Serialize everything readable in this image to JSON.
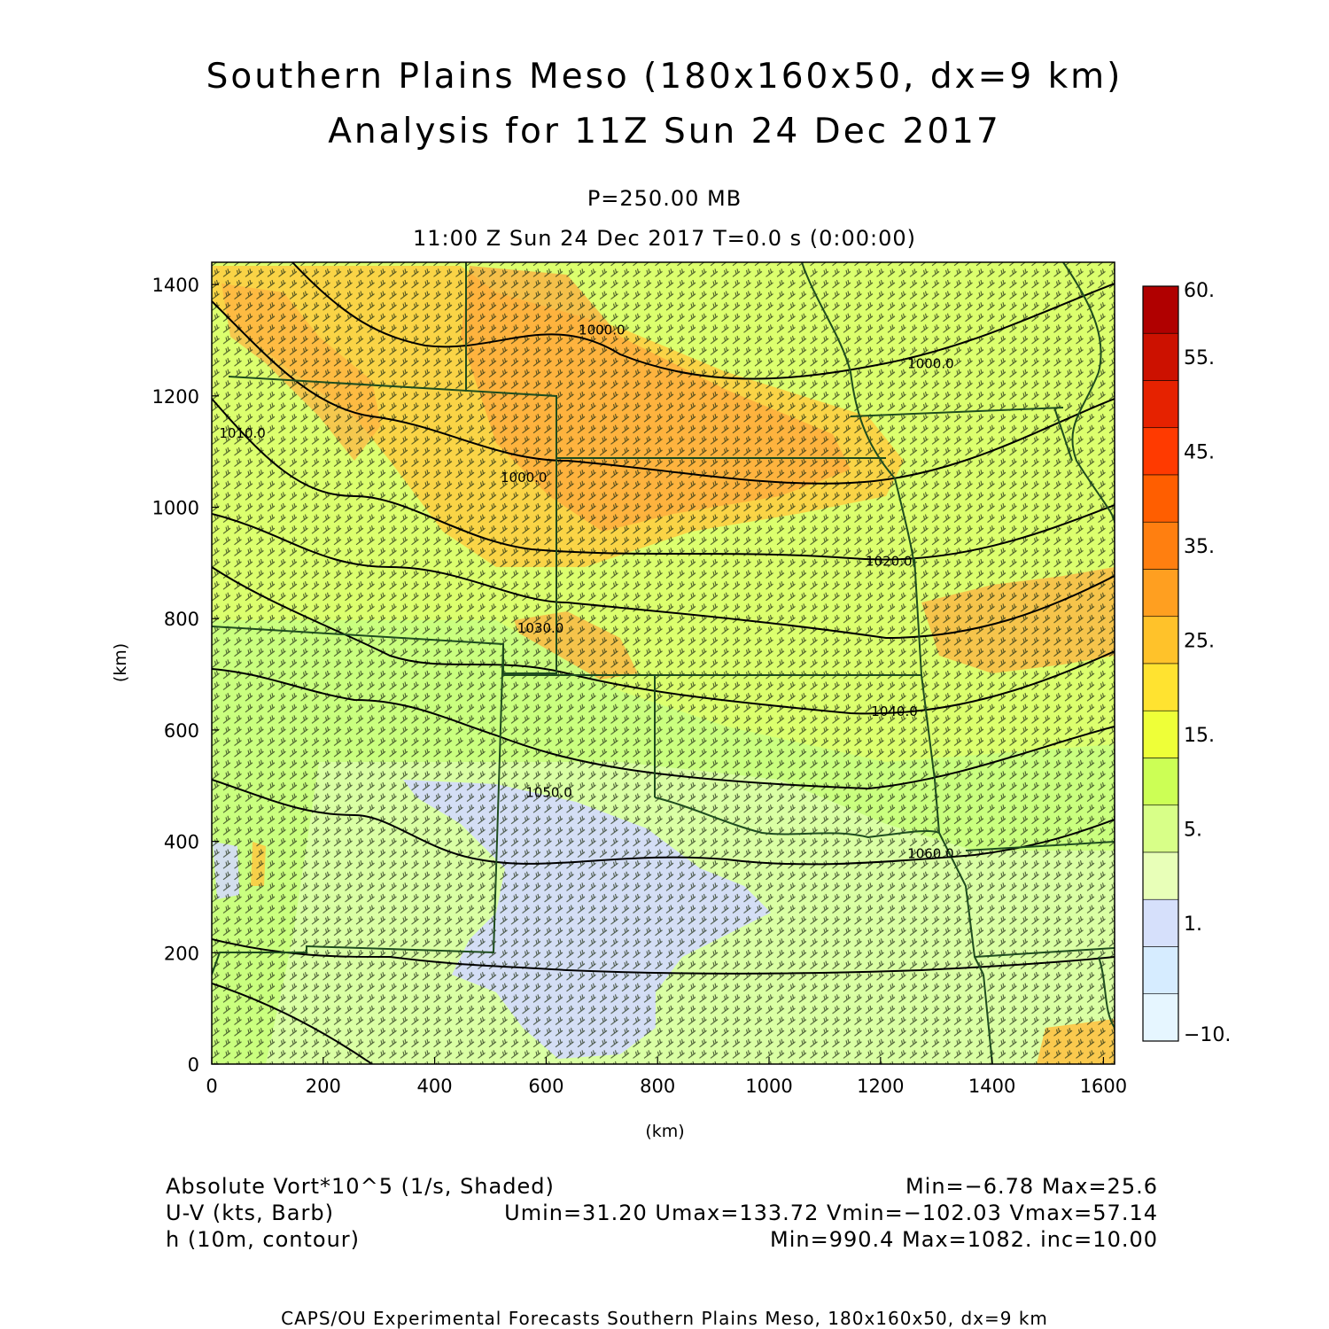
{
  "title_line1": "Southern Plains Meso (180x160x50, dx=9 km)",
  "title_line2": "Analysis for 11Z Sun 24 Dec 2017",
  "subtitle_pressure": "P=250.00 MB",
  "subtitle_time": "11:00 Z Sun 24 Dec 2017   T=0.0 s (0:00:00)",
  "axes": {
    "xlabel": "(km)",
    "ylabel": "(km)",
    "xlim": [
      0,
      1620
    ],
    "ylim": [
      0,
      1440
    ],
    "xticks": [
      "0",
      "200",
      "400",
      "600",
      "800",
      "1000",
      "1200",
      "1400",
      "1600"
    ],
    "yticks": [
      "0",
      "200",
      "400",
      "600",
      "800",
      "1000",
      "1200",
      "1400"
    ]
  },
  "colorbar": {
    "labels": [
      "60.",
      "55.",
      "45.",
      "35.",
      "25.",
      "15.",
      "5.",
      "1.",
      "−10."
    ],
    "colors": [
      "#b00000",
      "#cc1100",
      "#e62200",
      "#ff3a00",
      "#ff5e00",
      "#ff7f10",
      "#ff9f20",
      "#ffc22a",
      "#ffe330",
      "#eeff38",
      "#ccff55",
      "#d8ff88",
      "#e8ffb8",
      "#d6e0fb",
      "#d6ecff",
      "#e6f6ff"
    ]
  },
  "contour_labels": [
    {
      "text": "1000.0",
      "x": 700,
      "y": 1310
    },
    {
      "text": "1000.0",
      "x": 1290,
      "y": 1250
    },
    {
      "text": "1000.0",
      "x": 560,
      "y": 1045
    },
    {
      "text": "1010.0",
      "x": 55,
      "y": 1125
    },
    {
      "text": "1020.0",
      "x": 1215,
      "y": 895
    },
    {
      "text": "1030.0",
      "x": 590,
      "y": 775
    },
    {
      "text": "1040.0",
      "x": 1225,
      "y": 625
    },
    {
      "text": "1050.0",
      "x": 605,
      "y": 480
    },
    {
      "text": "1060.0",
      "x": 1290,
      "y": 370
    }
  ],
  "footer": {
    "field1_name": "Absolute Vort*10^5 (1/s, Shaded)",
    "field1_stats": "Min=−6.78 Max=25.6",
    "field2_name": "U-V (kts, Barb)",
    "field2_stats": "Umin=31.20 Umax=133.72 Vmin=−102.03 Vmax=57.14",
    "field3_name": "h (10m, contour)",
    "field3_stats": "Min=990.4 Max=1082. inc=10.00"
  },
  "credit": "CAPS/OU Experimental Forecasts  Southern Plains Meso, 180x160x50, dx=9 km"
}
